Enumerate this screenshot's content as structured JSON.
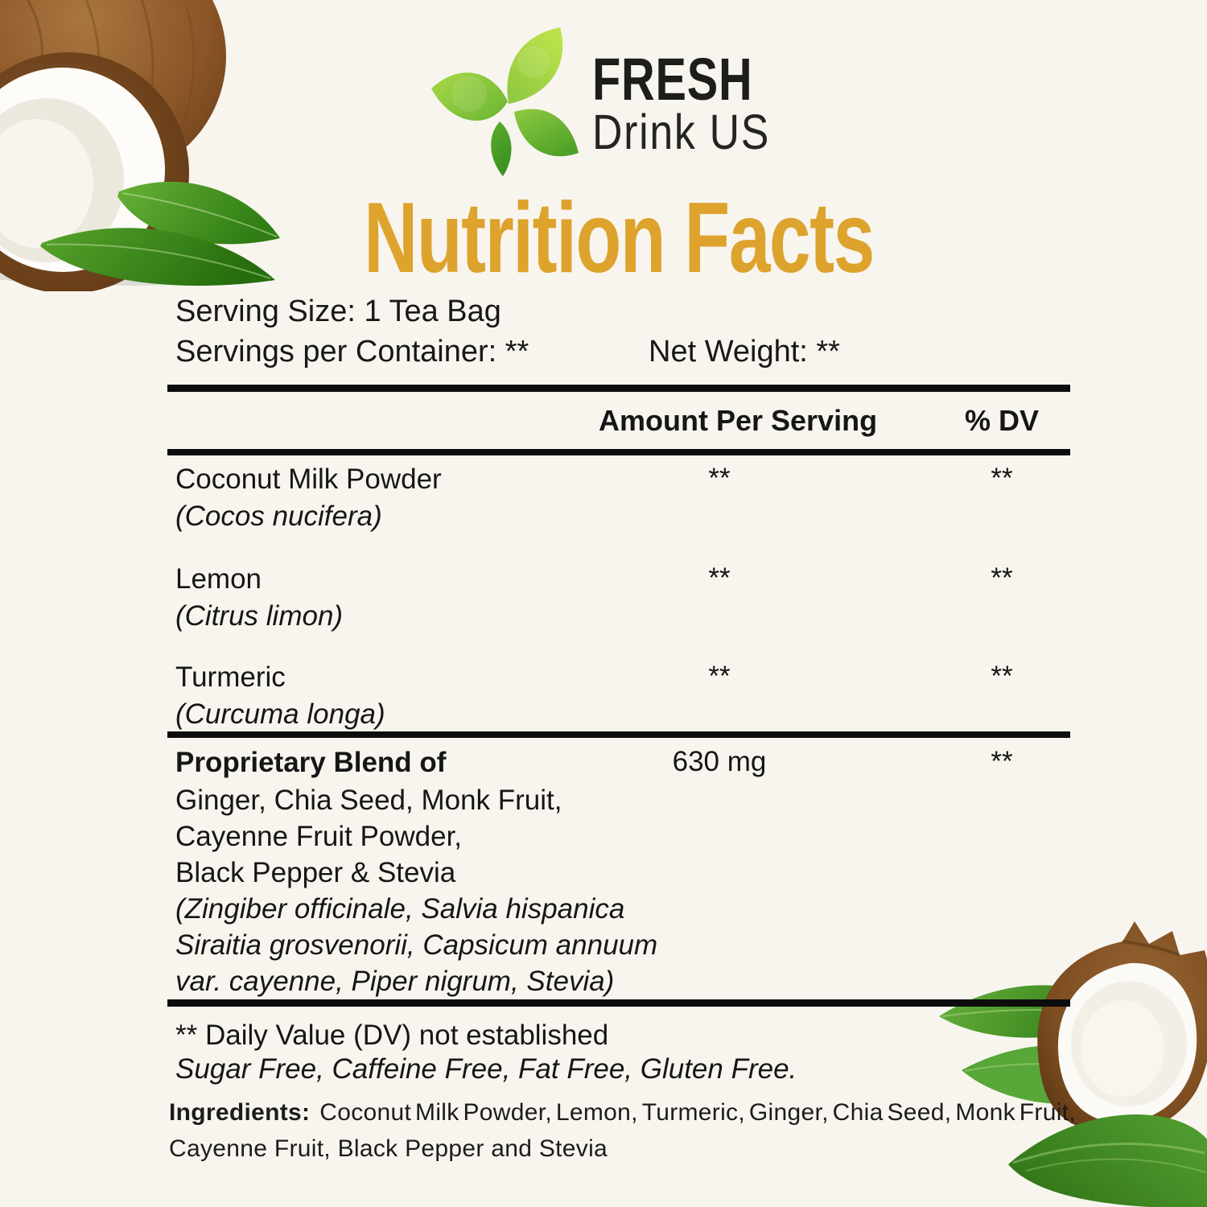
{
  "brand": {
    "name_top": "FRESH",
    "name_bottom": "Drink US"
  },
  "title": "Nutrition Facts",
  "serving": {
    "serving_size": "Serving Size: 1 Tea Bag",
    "servings_per_container": "Servings per Container: **",
    "net_weight": "Net Weight: **"
  },
  "table": {
    "headers": {
      "amount": "Amount Per Serving",
      "dv": "% DV"
    },
    "rows": [
      {
        "name": "Coconut Milk Powder",
        "latin": "(Cocos nucifera)",
        "amount": "**",
        "dv": "**"
      },
      {
        "name": "Lemon",
        "latin": "(Citrus limon)",
        "amount": "**",
        "dv": "**"
      },
      {
        "name": "Turmeric",
        "latin": "(Curcuma longa)",
        "amount": "**",
        "dv": "**"
      }
    ],
    "blend": {
      "name": "Proprietary Blend of",
      "amount": "630 mg",
      "dv": "**",
      "component_lines": [
        "Ginger, Chia Seed, Monk Fruit,",
        "Cayenne Fruit Powder,",
        "Black Pepper & Stevia"
      ],
      "latin_lines": [
        "(Zingiber officinale, Salvia hispanica",
        "Siraitia grosvenorii, Capsicum annuum",
        "var. cayenne, Piper nigrum, Stevia)"
      ]
    }
  },
  "footnotes": {
    "dv_note": "** Daily Value (DV) not established",
    "free_claims": "Sugar Free, Caffeine Free, Fat Free, Gluten Free."
  },
  "ingredients": {
    "label": "Ingredients:",
    "line1_rest": "Coconut Milk Powder, Lemon, Turmeric, Ginger, Chia Seed, Monk Fruit,",
    "line2": "Cayenne Fruit, Black Pepper and Stevia"
  },
  "colors": {
    "background": "#f8f5ef",
    "title_gold": "#dda32c",
    "text": "#161616",
    "rule_black": "#0d0d0d",
    "leaf_green": "#7dc242",
    "coconut_brown": "#8a5527"
  }
}
